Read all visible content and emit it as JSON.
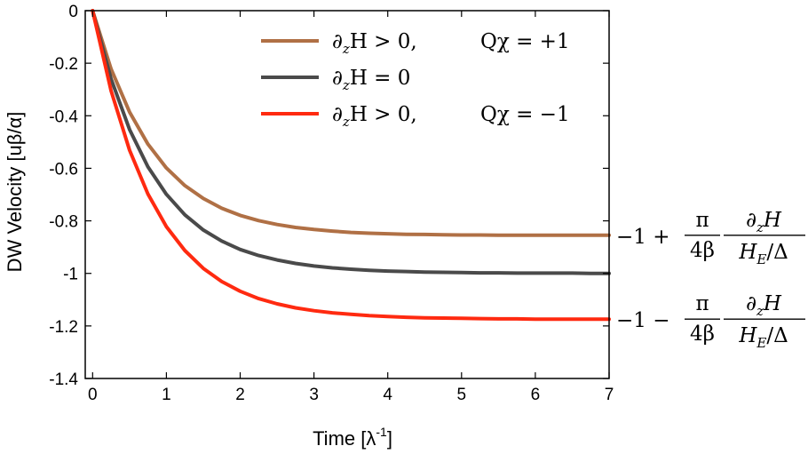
{
  "chart_data": {
    "type": "line",
    "xlabel": "Time [λ",
    "xlabel_sup": "-1",
    "xlabel_end": "]",
    "ylabel": "DW Velocity [uβ/α]",
    "xlim": [
      -0.1,
      7
    ],
    "ylim": [
      -1.4,
      0
    ],
    "xticks": [
      0,
      1,
      2,
      3,
      4,
      5,
      6,
      7
    ],
    "yticks": [
      0,
      -0.2,
      -0.4,
      -0.6,
      -0.8,
      -1,
      -1.2,
      -1.4
    ],
    "xtick_labels": [
      "0",
      "1",
      "2",
      "3",
      "4",
      "5",
      "6",
      "7"
    ],
    "ytick_labels": [
      "0",
      "-0.2",
      "-0.4",
      "-0.6",
      "-0.8",
      "-1",
      "-1.2",
      "-1.4"
    ],
    "grid": false,
    "legend_position": "top-right",
    "x": [
      0,
      0.25,
      0.5,
      0.75,
      1,
      1.25,
      1.5,
      1.75,
      2,
      2.25,
      2.5,
      2.75,
      3,
      3.25,
      3.5,
      3.75,
      4,
      4.25,
      4.5,
      4.75,
      5,
      5.25,
      5.5,
      5.75,
      6,
      6.25,
      6.5,
      6.75,
      7
    ],
    "series": [
      {
        "legend_parts": [
          "∂",
          "z",
          "H > 0,",
          "Qχ = +1"
        ],
        "color": "#b07045",
        "values": [
          0,
          -0.222,
          -0.386,
          -0.508,
          -0.599,
          -0.666,
          -0.715,
          -0.752,
          -0.779,
          -0.799,
          -0.814,
          -0.825,
          -0.833,
          -0.839,
          -0.844,
          -0.847,
          -0.849,
          -0.851,
          -0.852,
          -0.853,
          -0.854,
          -0.854,
          -0.855,
          -0.855,
          -0.855,
          -0.855,
          -0.855,
          -0.855,
          -0.855
        ]
      },
      {
        "legend_parts": [
          "∂",
          "z",
          "H = 0",
          ""
        ],
        "color": "#4a4a4a",
        "values": [
          0,
          -0.26,
          -0.452,
          -0.594,
          -0.699,
          -0.777,
          -0.835,
          -0.877,
          -0.909,
          -0.932,
          -0.949,
          -0.962,
          -0.972,
          -0.979,
          -0.984,
          -0.988,
          -0.991,
          -0.993,
          -0.995,
          -0.996,
          -0.997,
          -0.998,
          -0.998,
          -0.999,
          -0.999,
          -0.999,
          -0.999,
          -1.0,
          -1.0
        ]
      },
      {
        "legend_parts": [
          "∂",
          "z",
          "H > 0,",
          "Qχ = −1"
        ],
        "color": "#ff2a10",
        "values": [
          0,
          -0.305,
          -0.531,
          -0.698,
          -0.822,
          -0.913,
          -0.981,
          -1.031,
          -1.068,
          -1.096,
          -1.116,
          -1.131,
          -1.142,
          -1.15,
          -1.156,
          -1.161,
          -1.164,
          -1.167,
          -1.169,
          -1.17,
          -1.171,
          -1.172,
          -1.173,
          -1.173,
          -1.174,
          -1.174,
          -1.174,
          -1.174,
          -1.174
        ]
      }
    ],
    "annotations": [
      {
        "lead": "−1 +",
        "num1": "π",
        "den1": "4β",
        "num2_a": "∂",
        "num2_sub": "z",
        "num2_b": "H",
        "den2_a": "H",
        "den2_sub": "E",
        "den2_b": "/Δ"
      },
      {
        "lead": "−1 −",
        "num1": "π",
        "den1": "4β",
        "num2_a": "∂",
        "num2_sub": "z",
        "num2_b": "H",
        "den2_a": "H",
        "den2_sub": "E",
        "den2_b": "/Δ"
      }
    ]
  }
}
